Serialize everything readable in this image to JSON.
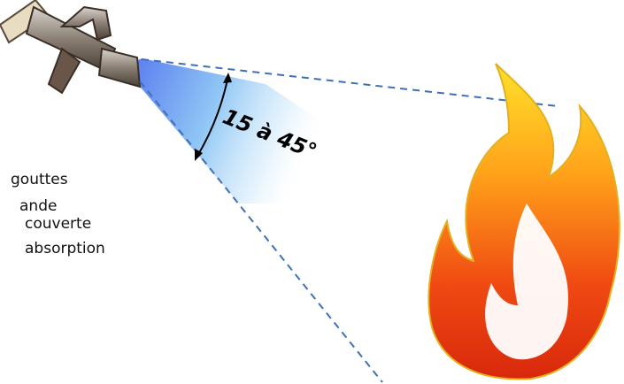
{
  "diagram": {
    "angle_label": "15 à 45°",
    "text_lines": [
      "gouttes",
      "ande",
      "couverte",
      "absorption"
    ]
  }
}
